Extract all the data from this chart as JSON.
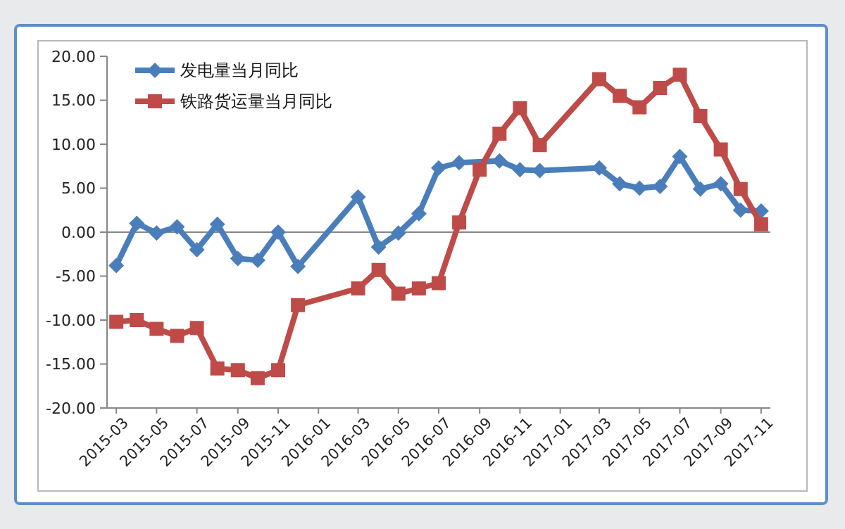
{
  "chart_data": {
    "type": "line",
    "xlim": [
      "2015-02-15",
      "2017-11-15"
    ],
    "xticks": [
      "2015-03",
      "2015-05",
      "2015-07",
      "2015-09",
      "2015-11",
      "2016-01",
      "2016-03",
      "2016-05",
      "2016-07",
      "2016-09",
      "2016-11",
      "2017-01",
      "2017-03",
      "2017-05",
      "2017-07",
      "2017-09",
      "2017-11"
    ],
    "ylim": [
      -20,
      20
    ],
    "yticks": [
      {
        "value": -20,
        "label": "-20.00"
      },
      {
        "value": -15,
        "label": "-15.00"
      },
      {
        "value": -10,
        "label": "-10.00"
      },
      {
        "value": -5,
        "label": "-5.00"
      },
      {
        "value": 0,
        "label": "0.00"
      },
      {
        "value": 5,
        "label": "5.00"
      },
      {
        "value": 10,
        "label": "10.00"
      },
      {
        "value": 15,
        "label": "15.00"
      },
      {
        "value": 20,
        "label": "20.00"
      }
    ],
    "grid": false,
    "legend": "top left",
    "ref_lines": [
      {
        "axis": "y",
        "value": 0,
        "color": "#868686"
      }
    ],
    "series": [
      {
        "name": "发电量当月同比",
        "color": "#4a7ebb",
        "marker": "diamond",
        "x": [
          "2015-03",
          "2015-04",
          "2015-05",
          "2015-06",
          "2015-07",
          "2015-08",
          "2015-09",
          "2015-10",
          "2015-11",
          "2015-12",
          "2016-03",
          "2016-04",
          "2016-05",
          "2016-06",
          "2016-07",
          "2016-08",
          "2016-10",
          "2016-11",
          "2016-12",
          "2017-03",
          "2017-04",
          "2017-05",
          "2017-06",
          "2017-07",
          "2017-08",
          "2017-09",
          "2017-10",
          "2017-11"
        ],
        "values": [
          -3.8,
          1.0,
          -0.1,
          0.6,
          -2.0,
          0.9,
          -3.0,
          -3.2,
          0.0,
          -3.9,
          4.0,
          -1.7,
          -0.1,
          2.1,
          7.3,
          7.9,
          8.1,
          7.1,
          7.0,
          7.3,
          5.5,
          5.0,
          5.2,
          8.6,
          4.9,
          5.5,
          2.5,
          2.4
        ]
      },
      {
        "name": "铁路货运量当月同比",
        "color": "#be4b48",
        "marker": "square",
        "x": [
          "2015-03",
          "2015-04",
          "2015-05",
          "2015-06",
          "2015-07",
          "2015-08",
          "2015-09",
          "2015-10",
          "2015-11",
          "2015-12",
          "2016-03",
          "2016-04",
          "2016-05",
          "2016-06",
          "2016-07",
          "2016-08",
          "2016-09",
          "2016-10",
          "2016-11",
          "2016-12",
          "2017-03",
          "2017-04",
          "2017-05",
          "2017-06",
          "2017-07",
          "2017-08",
          "2017-09",
          "2017-10",
          "2017-11"
        ],
        "values": [
          -10.2,
          -10.0,
          -11.0,
          -11.8,
          -10.9,
          -15.5,
          -15.7,
          -16.6,
          -15.7,
          -8.3,
          -6.4,
          -4.3,
          -7.0,
          -6.4,
          -5.8,
          1.1,
          7.1,
          11.2,
          14.1,
          9.9,
          17.4,
          15.5,
          14.2,
          16.4,
          17.9,
          13.2,
          9.4,
          4.9,
          0.9
        ]
      }
    ]
  }
}
